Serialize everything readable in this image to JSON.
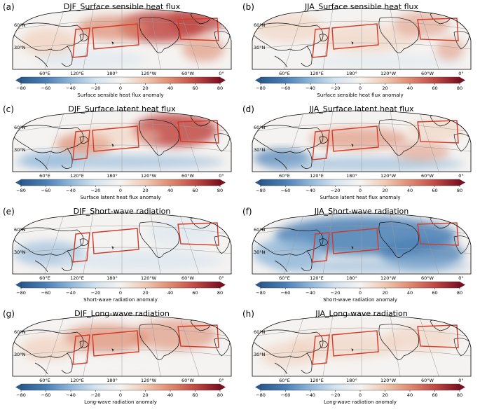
{
  "figure": {
    "panels": [
      {
        "letter": "(a)",
        "title": "DJF_Surface sensible heat flux",
        "cbar_label": "Surface sensible heat flux anomaly",
        "season": "DJF",
        "var": "sensible"
      },
      {
        "letter": "(b)",
        "title": "JJA_Surface sensible heat flux",
        "cbar_label": "Surface sensible heat flux anomaly",
        "season": "JJA",
        "var": "sensible"
      },
      {
        "letter": "(c)",
        "title": "DJF_Surface latent heat flux",
        "cbar_label": "Surface latent heat flux anomaly",
        "season": "DJF",
        "var": "latent"
      },
      {
        "letter": "(d)",
        "title": "JJA_Surface latent heat flux",
        "cbar_label": "Surface latent heat flux anomaly",
        "season": "JJA",
        "var": "latent"
      },
      {
        "letter": "(e)",
        "title": "DJF_Short-wave radiation",
        "cbar_label": "Short-wave radiation anomaly",
        "season": "DJF",
        "var": "shortwave"
      },
      {
        "letter": "(f)",
        "title": "JJA_Short-wave radiation",
        "cbar_label": "Short-wave radiation anomaly",
        "season": "JJA",
        "var": "shortwave"
      },
      {
        "letter": "(g)",
        "title": "DJF_Long-wave radiation",
        "cbar_label": "Long-wave radiation anomaly",
        "season": "DJF",
        "var": "longwave"
      },
      {
        "letter": "(h)",
        "title": "JJA_Long-wave radiation",
        "cbar_label": "Long-wave radiation anomaly",
        "season": "JJA",
        "var": "longwave"
      }
    ],
    "lon_labels": [
      "60°E",
      "120°E",
      "180°",
      "120°W",
      "60°W",
      "0°"
    ],
    "lat_labels": [
      "60°N",
      "30°N"
    ],
    "colorbar": {
      "range": [
        -80,
        80
      ],
      "ticks": [
        "-80",
        "-60",
        "-40",
        "-20",
        "0",
        "20",
        "40",
        "60",
        "80"
      ],
      "colormap": "RdBu_r",
      "colors": [
        "#2b5a8c",
        "#4a7fb5",
        "#8fb6d8",
        "#d4e3ef",
        "#f5f3f1",
        "#f0c9b2",
        "#dd8a70",
        "#c04a45",
        "#7a1020"
      ]
    },
    "box_color": "#d23a2a"
  }
}
